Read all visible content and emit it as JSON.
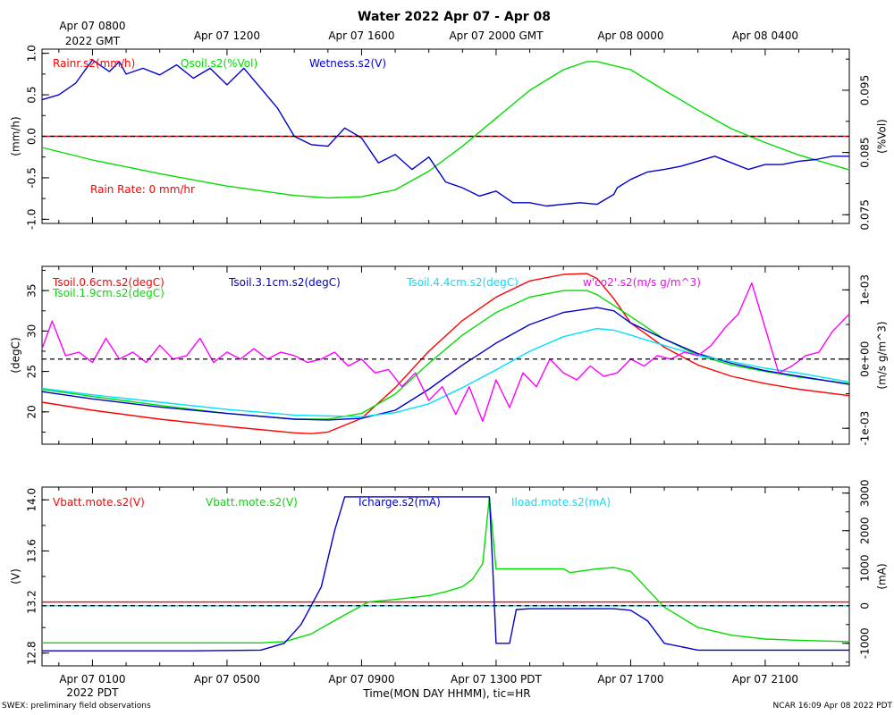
{
  "title": "Water 2022 Apr 07 - Apr 08",
  "top_axis": {
    "labels": [
      "Apr 07 0800",
      "Apr 07 1200",
      "Apr 07 1600",
      "Apr 07 2000 GMT",
      "Apr 08 0000",
      "Apr 08 0400"
    ],
    "first_sub": "2022 GMT"
  },
  "bottom_axis": {
    "labels": [
      "Apr 07 0100",
      "Apr 07 0500",
      "Apr 07 0900",
      "Apr 07 1300 PDT",
      "Apr 07 1700",
      "Apr 07 2100"
    ],
    "first_sub": "2022 PDT",
    "xlabel": "Time(MON DAY HHMM), tic=HR"
  },
  "footer": {
    "left": "SWEX: preliminary field observations",
    "right": "NCAR 16:09 Apr 08 2022 PDT"
  },
  "colors": {
    "red": "#ff0000",
    "green": "#00dd00",
    "blue": "#0000cc",
    "cyan": "#00e0ff",
    "magenta": "#ff00ff"
  },
  "chart_data": [
    {
      "type": "line",
      "panel": "water",
      "x_unit": "hours since Apr 07 0000 PDT",
      "xlim": [
        23.5,
        47.5
      ],
      "left_axis": {
        "label": "(mm/h)",
        "ticks": [
          "-1.0",
          "-0.5",
          "0.0",
          "0.5",
          "1.0"
        ],
        "ylim": [
          -1.05,
          1.05
        ]
      },
      "right_axis": {
        "label": "(%Vol)",
        "ticks": [
          "0.075",
          "0.085",
          "0.095"
        ],
        "ylim": [
          0.0736,
          0.1016
        ]
      },
      "legend": [
        "Rainr.s2(mm/h)",
        "Qsoil.s2(%Vol)",
        "Wetness.s2(V)"
      ],
      "annotation": "Rain Rate: 0 mm/hr",
      "series": [
        {
          "name": "Rainr.s2(mm/h)",
          "axis": "left",
          "color": "red",
          "x": [
            23.5,
            47.5
          ],
          "y": [
            0.0,
            0.0
          ]
        },
        {
          "name": "Qsoil.s2(%Vol)",
          "axis": "right",
          "color": "green",
          "x": [
            23.5,
            25,
            27,
            29,
            31,
            32,
            33,
            34,
            35,
            36,
            37,
            38,
            39,
            39.7,
            40,
            41,
            42,
            43,
            44,
            45,
            46,
            47.5
          ],
          "y": [
            0.0858,
            0.0838,
            0.0816,
            0.0796,
            0.0781,
            0.0777,
            0.0779,
            0.079,
            0.082,
            0.086,
            0.0905,
            0.095,
            0.0983,
            0.0996,
            0.0996,
            0.0983,
            0.095,
            0.0918,
            0.0888,
            0.0866,
            0.0846,
            0.0822
          ]
        },
        {
          "name": "Wetness.s2(V)",
          "axis": "left",
          "color": "blue",
          "x": [
            23.5,
            24,
            24.5,
            25,
            25.5,
            25.8,
            26,
            26.5,
            27,
            27.5,
            28,
            28.5,
            29,
            29.5,
            30,
            30.5,
            31,
            31.5,
            32,
            32.5,
            33,
            33.5,
            34,
            34.5,
            35,
            35.5,
            36,
            36.5,
            37,
            37.5,
            38,
            38.5,
            39,
            39.5,
            40,
            40.5,
            40.6,
            41,
            41.5,
            42,
            42.5,
            43,
            43.5,
            44,
            44.5,
            45,
            45.5,
            46,
            46.5,
            47,
            47.5
          ],
          "y": [
            0.44,
            0.5,
            0.64,
            0.92,
            0.78,
            0.9,
            0.75,
            0.82,
            0.74,
            0.86,
            0.7,
            0.82,
            0.62,
            0.82,
            0.58,
            0.34,
            0.0,
            -0.1,
            -0.12,
            0.1,
            -0.02,
            -0.32,
            -0.22,
            -0.4,
            -0.25,
            -0.55,
            -0.62,
            -0.72,
            -0.66,
            -0.8,
            -0.8,
            -0.84,
            -0.82,
            -0.8,
            -0.82,
            -0.7,
            -0.62,
            -0.52,
            -0.43,
            -0.4,
            -0.36,
            -0.3,
            -0.24,
            -0.32,
            -0.4,
            -0.34,
            -0.34,
            -0.3,
            -0.28,
            -0.24,
            -0.24
          ]
        }
      ]
    },
    {
      "type": "line",
      "panel": "soil temperature",
      "x_unit": "hours since Apr 07 0000 PDT",
      "xlim": [
        23.5,
        47.5
      ],
      "left_axis": {
        "label": "(degC)",
        "ticks": [
          "20",
          "25",
          "30",
          "35"
        ],
        "ylim": [
          16,
          38
        ]
      },
      "right_axis": {
        "label": "(m/s g/m^3)",
        "ticks": [
          "-1e-03",
          "0e+00",
          "1e-03"
        ],
        "ylim": [
          -0.00123,
          0.00134
        ]
      },
      "legend": [
        "Tsoil.0.6cm.s2(degC)",
        "Tsoil.1.9cm.s2(degC)",
        "Tsoil.3.1cm.s2(degC)",
        "Tsoil.4.4cm.s2(degC)",
        "w'co2'.s2(m/s g/m^3)"
      ],
      "series": [
        {
          "name": "Tsoil.0.6cm.s2(degC)",
          "axis": "left",
          "color": "red",
          "x": [
            23.5,
            25,
            27,
            29,
            31,
            31.5,
            32,
            33,
            34,
            35,
            36,
            37,
            38,
            39,
            39.7,
            40,
            40.5,
            41,
            42,
            43,
            44,
            45,
            46,
            47.5
          ],
          "y": [
            21.2,
            20.2,
            19.1,
            18.2,
            17.4,
            17.3,
            17.5,
            19.2,
            23.0,
            27.5,
            31.3,
            34.2,
            36.2,
            37.0,
            37.1,
            36.5,
            34.0,
            31.0,
            28.0,
            25.8,
            24.4,
            23.5,
            22.8,
            22.0
          ]
        },
        {
          "name": "Tsoil.1.9cm.s2(degC)",
          "axis": "left",
          "color": "green",
          "x": [
            23.5,
            25,
            27,
            29,
            31,
            32,
            33,
            34,
            35,
            36,
            37,
            38,
            39,
            39.7,
            40,
            41,
            42,
            43,
            44,
            45,
            46,
            47.5
          ],
          "y": [
            22.8,
            21.9,
            20.8,
            19.8,
            19.1,
            19.1,
            19.8,
            22.2,
            26.0,
            29.5,
            32.3,
            34.2,
            35.0,
            35.0,
            34.5,
            31.8,
            29.0,
            27.0,
            25.8,
            25.0,
            24.3,
            23.5
          ]
        },
        {
          "name": "Tsoil.3.1cm.s2(degC)",
          "axis": "left",
          "color": "blue",
          "x": [
            23.5,
            25,
            27,
            29,
            31,
            32,
            33,
            34,
            35,
            36,
            37,
            38,
            39,
            40,
            40.5,
            41,
            42,
            43,
            44,
            45,
            46,
            47.5
          ],
          "y": [
            22.5,
            21.6,
            20.6,
            19.8,
            19.1,
            19.0,
            19.2,
            20.2,
            22.8,
            25.8,
            28.5,
            30.8,
            32.3,
            32.9,
            32.5,
            31.0,
            29.0,
            27.2,
            26.0,
            25.1,
            24.4,
            23.4
          ]
        },
        {
          "name": "Tsoil.4.4cm.s2(degC)",
          "axis": "left",
          "color": "cyan",
          "x": [
            23.5,
            25,
            27,
            29,
            31,
            32,
            33,
            34,
            35,
            36,
            37,
            38,
            39,
            40,
            40.5,
            41,
            42,
            43,
            44,
            45,
            46,
            47.5
          ],
          "y": [
            22.9,
            22.1,
            21.2,
            20.3,
            19.6,
            19.5,
            19.4,
            19.9,
            21.0,
            23.0,
            25.2,
            27.5,
            29.3,
            30.3,
            30.1,
            29.5,
            28.2,
            27.0,
            26.2,
            25.4,
            24.8,
            23.7
          ]
        },
        {
          "name": "w'co2'.s2(m/s g/m^3)",
          "axis": "right",
          "color": "magenta",
          "x": [
            23.5,
            23.8,
            24.2,
            24.6,
            25,
            25.4,
            25.8,
            26.2,
            26.6,
            27,
            27.4,
            27.8,
            28.2,
            28.6,
            29,
            29.4,
            29.8,
            30.2,
            30.6,
            31,
            31.4,
            31.8,
            32.2,
            32.6,
            33,
            33.4,
            33.8,
            34.2,
            34.6,
            35,
            35.4,
            35.8,
            36.2,
            36.6,
            37,
            37.4,
            37.8,
            38.2,
            38.6,
            39,
            39.4,
            39.8,
            40.2,
            40.6,
            41,
            41.4,
            41.8,
            42.2,
            42.6,
            43,
            43.4,
            43.8,
            44.2,
            44.6,
            45,
            45.4,
            45.8,
            46.2,
            46.6,
            47,
            47.5
          ],
          "y": [
            0.00015,
            0.00055,
            5e-05,
            0.0001,
            -5e-05,
            0.0003,
            0.0,
            0.0001,
            -5e-05,
            0.0002,
            0.0,
            5e-05,
            0.0003,
            -5e-05,
            0.0001,
            0.0,
            0.00015,
            0.0,
            0.0001,
            5e-05,
            -5e-05,
            0.0,
            0.0001,
            -0.0001,
            0.0,
            -0.0002,
            -0.00015,
            -0.0004,
            -0.0002,
            -0.0006,
            -0.0004,
            -0.0008,
            -0.0004,
            -0.0009,
            -0.0003,
            -0.0007,
            -0.0002,
            -0.0004,
            0.0,
            -0.0002,
            -0.0003,
            -0.0001,
            -0.00025,
            -0.0002,
            0.0,
            -0.0001,
            5e-05,
            0.0,
            0.0001,
            5e-05,
            0.0002,
            0.00045,
            0.00065,
            0.0011,
            0.00045,
            -0.0002,
            -0.0001,
            5e-05,
            0.0001,
            0.0004,
            0.00065
          ]
        }
      ]
    },
    {
      "type": "line",
      "panel": "power",
      "x_unit": "hours since Apr 07 0000 PDT",
      "xlim": [
        23.5,
        47.5
      ],
      "left_axis": {
        "label": "(V)",
        "ticks": [
          "12.8",
          "13.2",
          "13.6",
          "14.0"
        ],
        "ylim": [
          12.7,
          14.1
        ]
      },
      "right_axis": {
        "label": "(mA)",
        "ticks": [
          "-1000",
          "0",
          "1000",
          "2000",
          "3000"
        ],
        "ylim": [
          -1600,
          3160
        ]
      },
      "legend": [
        "Vbatt.mote.s2(V)",
        "Vbatt.mote.s2(V)",
        "Icharge.s2(mA)",
        "Iload.mote.s2(mA)"
      ],
      "series": [
        {
          "name": "Vbatt.mote.s2(V)",
          "axis": "left",
          "color": "red",
          "x": [
            23.5,
            47.5
          ],
          "y": [
            13.2,
            13.2
          ]
        },
        {
          "name": "Vbatt.mote.s2(V)",
          "axis": "left",
          "color": "green",
          "x": [
            23.5,
            26,
            28,
            30,
            30.7,
            31.5,
            32.3,
            33.2,
            34,
            35,
            35.5,
            36,
            36.3,
            36.6,
            36.8,
            37,
            38,
            39,
            39.2,
            40,
            40.5,
            41,
            42,
            43,
            44,
            45,
            46,
            47.5
          ],
          "y": [
            12.88,
            12.88,
            12.88,
            12.88,
            12.89,
            12.95,
            13.07,
            13.2,
            13.22,
            13.25,
            13.28,
            13.32,
            13.38,
            13.5,
            14.02,
            13.46,
            13.46,
            13.46,
            13.43,
            13.46,
            13.47,
            13.44,
            13.16,
            13.0,
            12.94,
            12.91,
            12.9,
            12.89
          ]
        },
        {
          "name": "Icharge.s2(mA)",
          "axis": "right",
          "color": "blue",
          "x": [
            23.5,
            28,
            30,
            30.7,
            31.2,
            31.8,
            32.2,
            32.5,
            32.8,
            33.4,
            34,
            35,
            36,
            36.8,
            36.9,
            37,
            37.4,
            37.6,
            38,
            39,
            40,
            40.5,
            41,
            41.5,
            42,
            43,
            45,
            47.5
          ],
          "y": [
            -1200,
            -1200,
            -1180,
            -1000,
            -500,
            500,
            2000,
            2900,
            2900,
            2900,
            2900,
            2900,
            2900,
            2900,
            1000,
            -1000,
            -1000,
            -100,
            -80,
            -80,
            -80,
            -80,
            -120,
            -400,
            -1000,
            -1180,
            -1180,
            -1180
          ]
        },
        {
          "name": "Iload.mote.s2(mA)",
          "axis": "right",
          "color": "cyan",
          "x": [
            23.5,
            47.5
          ],
          "y": [
            0,
            0
          ]
        }
      ]
    }
  ]
}
